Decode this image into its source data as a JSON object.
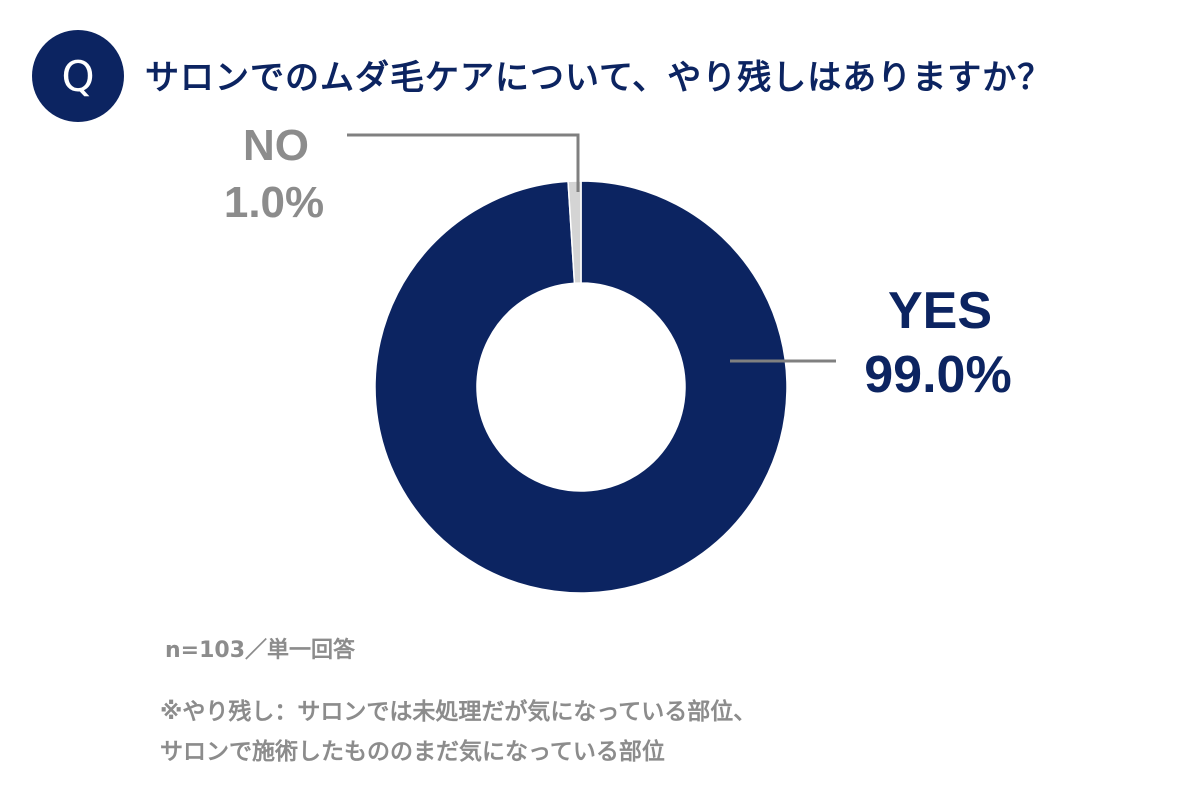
{
  "header": {
    "badge": "Q",
    "question": "サロンでのムダ毛ケアについて、やり残しはありますか？"
  },
  "colors": {
    "navy": "#0c2461",
    "gray_slice": "#d4d4d4",
    "gray_text": "#8c8c8c",
    "leader": "#808080"
  },
  "chart_data": {
    "type": "pie",
    "donut": true,
    "slices": [
      {
        "label": "YES",
        "value": 99.0,
        "display": "99.0%",
        "color": "#0c2461"
      },
      {
        "label": "NO",
        "value": 1.0,
        "display": "1.0%",
        "color": "#d4d4d4"
      }
    ],
    "start_angle_deg": 0,
    "direction": "clockwise",
    "legend": "none"
  },
  "footer": {
    "sample": "n=103／単一回答",
    "note_line1": "※やり残し：サロンでは未処理だが気になっている部位、",
    "note_line2": "サロンで施術したもののまだ気になっている部位"
  }
}
